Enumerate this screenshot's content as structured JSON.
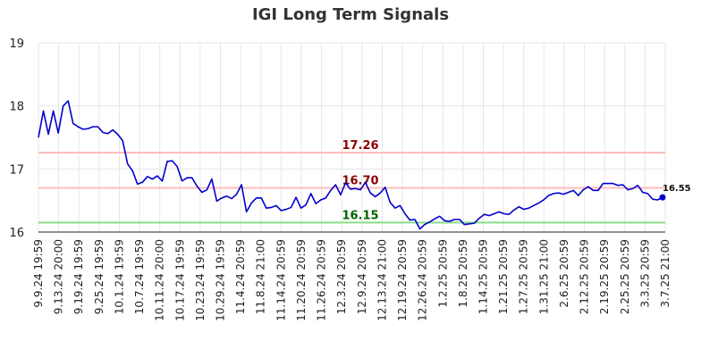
{
  "chart_data": {
    "type": "line",
    "title": "IGI Long Term Signals",
    "xlabel": "",
    "ylabel": "",
    "ylim": [
      16,
      19
    ],
    "yticks": [
      "16",
      "17",
      "18",
      "19"
    ],
    "xtick_labels": [
      "9.9.24 19:59",
      "9.13.24 20:00",
      "9.19.24 19:59",
      "9.25.24 19:59",
      "10.1.24 19:59",
      "10.7.24 19:59",
      "10.11.24 20:00",
      "10.17.24 19:59",
      "10.23.24 19:59",
      "10.29.24 19:59",
      "11.4.24 20:59",
      "11.8.24 21:00",
      "11.14.24 20:59",
      "11.20.24 20:59",
      "11.26.24 20:59",
      "12.3.24 20:59",
      "12.9.24 20:59",
      "12.13.24 21:00",
      "12.19.24 20:59",
      "12.26.24 20:59",
      "1.2.25 20:59",
      "1.8.25 20:59",
      "1.14.25 20:59",
      "1.21.25 20:59",
      "1.27.25 20:59",
      "1.31.25 21:00",
      "2.6.25 20:59",
      "2.12.25 20:59",
      "2.19.25 20:59",
      "2.25.25 20:59",
      "3.3.25 20:59",
      "3.7.25 21:00"
    ],
    "grid": true,
    "series": [
      {
        "color": "#0000cc",
        "values": [
          17.5,
          17.92,
          17.55,
          17.92,
          17.57,
          18.0,
          18.08,
          17.72,
          17.67,
          17.63,
          17.64,
          17.67,
          17.67,
          17.58,
          17.56,
          17.62,
          17.55,
          17.45,
          17.08,
          16.97,
          16.76,
          16.79,
          16.88,
          16.84,
          16.89,
          16.81,
          17.12,
          17.13,
          17.04,
          16.81,
          16.86,
          16.86,
          16.73,
          16.63,
          16.67,
          16.84,
          16.49,
          16.54,
          16.57,
          16.53,
          16.6,
          16.75,
          16.32,
          16.46,
          16.54,
          16.54,
          16.38,
          16.39,
          16.42,
          16.34,
          16.36,
          16.39,
          16.55,
          16.38,
          16.43,
          16.61,
          16.45,
          16.51,
          16.54,
          16.66,
          16.75,
          16.59,
          16.78,
          16.68,
          16.69,
          16.67,
          16.79,
          16.62,
          16.56,
          16.62,
          16.71,
          16.47,
          16.38,
          16.42,
          16.29,
          16.19,
          16.2,
          16.05,
          16.12,
          16.16,
          16.21,
          16.25,
          16.18,
          16.17,
          16.2,
          16.2,
          16.12,
          16.13,
          16.14,
          16.22,
          16.28,
          16.26,
          16.29,
          16.32,
          16.29,
          16.28,
          16.35,
          16.4,
          16.36,
          16.38,
          16.42,
          16.46,
          16.51,
          16.58,
          16.61,
          16.62,
          16.6,
          16.63,
          16.66,
          16.58,
          16.67,
          16.72,
          16.66,
          16.66,
          16.77,
          16.77,
          16.77,
          16.74,
          16.75,
          16.67,
          16.69,
          16.74,
          16.63,
          16.61,
          16.52,
          16.51,
          16.55
        ]
      }
    ],
    "reference_lines": [
      {
        "value": 17.26,
        "label": "17.26",
        "line_color": "#ffbbbb",
        "label_color": "#8b0000"
      },
      {
        "value": 16.7,
        "label": "16.70",
        "line_color": "#ffbbbb",
        "label_color": "#8b0000"
      },
      {
        "value": 16.15,
        "label": "16.15",
        "line_color": "#88dd88",
        "label_color": "#006400"
      }
    ],
    "last_value_label": "16.55"
  }
}
